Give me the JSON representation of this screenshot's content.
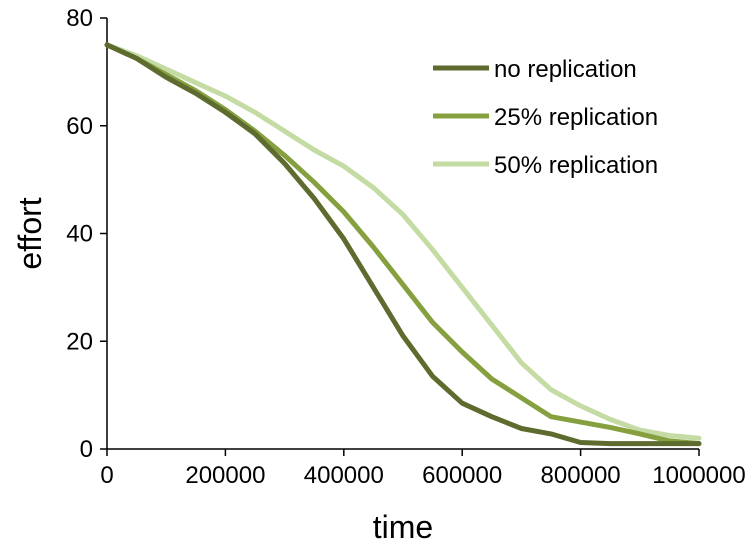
{
  "chart_data": {
    "type": "line",
    "xlabel": "time",
    "ylabel": "effort",
    "xlim": [
      0,
      1000000
    ],
    "ylim": [
      0,
      80
    ],
    "x_ticks": [
      {
        "value": 0,
        "label": "0"
      },
      {
        "value": 200000,
        "label": "200000"
      },
      {
        "value": 400000,
        "label": "400000"
      },
      {
        "value": 600000,
        "label": "600000"
      },
      {
        "value": 800000,
        "label": "800000"
      },
      {
        "value": 1000000,
        "label": "1000000"
      }
    ],
    "y_ticks": [
      {
        "value": 0,
        "label": "0"
      },
      {
        "value": 20,
        "label": "20"
      },
      {
        "value": 40,
        "label": "40"
      },
      {
        "value": 60,
        "label": "60"
      },
      {
        "value": 80,
        "label": "80"
      }
    ],
    "grid": false,
    "legend_position": "top-right",
    "series": [
      {
        "name": "no replication",
        "color": "#5e6b2e",
        "points": [
          [
            0,
            75
          ],
          [
            50000,
            72.5
          ],
          [
            100000,
            69
          ],
          [
            150000,
            66
          ],
          [
            200000,
            62.5
          ],
          [
            250000,
            58.5
          ],
          [
            300000,
            53
          ],
          [
            350000,
            46.5
          ],
          [
            400000,
            39
          ],
          [
            450000,
            30
          ],
          [
            500000,
            21
          ],
          [
            550000,
            13.5
          ],
          [
            600000,
            8.5
          ],
          [
            650000,
            6
          ],
          [
            700000,
            3.8
          ],
          [
            750000,
            2.8
          ],
          [
            800000,
            1.2
          ],
          [
            850000,
            1
          ],
          [
            900000,
            1
          ],
          [
            950000,
            1
          ],
          [
            1000000,
            1
          ]
        ]
      },
      {
        "name": "25% replication",
        "color": "#86a040",
        "points": [
          [
            0,
            75
          ],
          [
            50000,
            72.5
          ],
          [
            100000,
            69.5
          ],
          [
            150000,
            66.5
          ],
          [
            200000,
            63
          ],
          [
            250000,
            59
          ],
          [
            300000,
            54.5
          ],
          [
            350000,
            49.5
          ],
          [
            400000,
            44
          ],
          [
            450000,
            37.5
          ],
          [
            500000,
            30.5
          ],
          [
            550000,
            23.5
          ],
          [
            600000,
            18
          ],
          [
            650000,
            13
          ],
          [
            700000,
            9.5
          ],
          [
            750000,
            6
          ],
          [
            800000,
            5
          ],
          [
            850000,
            4
          ],
          [
            900000,
            2.8
          ],
          [
            950000,
            1.5
          ],
          [
            1000000,
            1
          ]
        ]
      },
      {
        "name": "50% replication",
        "color": "#c4dca4",
        "points": [
          [
            0,
            75
          ],
          [
            50000,
            73
          ],
          [
            100000,
            70.5
          ],
          [
            150000,
            68
          ],
          [
            200000,
            65.5
          ],
          [
            250000,
            62.5
          ],
          [
            300000,
            59
          ],
          [
            350000,
            55.5
          ],
          [
            400000,
            52.5
          ],
          [
            450000,
            48.5
          ],
          [
            500000,
            43.5
          ],
          [
            550000,
            37
          ],
          [
            600000,
            30
          ],
          [
            650000,
            23
          ],
          [
            700000,
            16
          ],
          [
            750000,
            11
          ],
          [
            800000,
            8
          ],
          [
            850000,
            5.5
          ],
          [
            900000,
            3.5
          ],
          [
            950000,
            2.5
          ],
          [
            1000000,
            2
          ]
        ]
      }
    ]
  }
}
